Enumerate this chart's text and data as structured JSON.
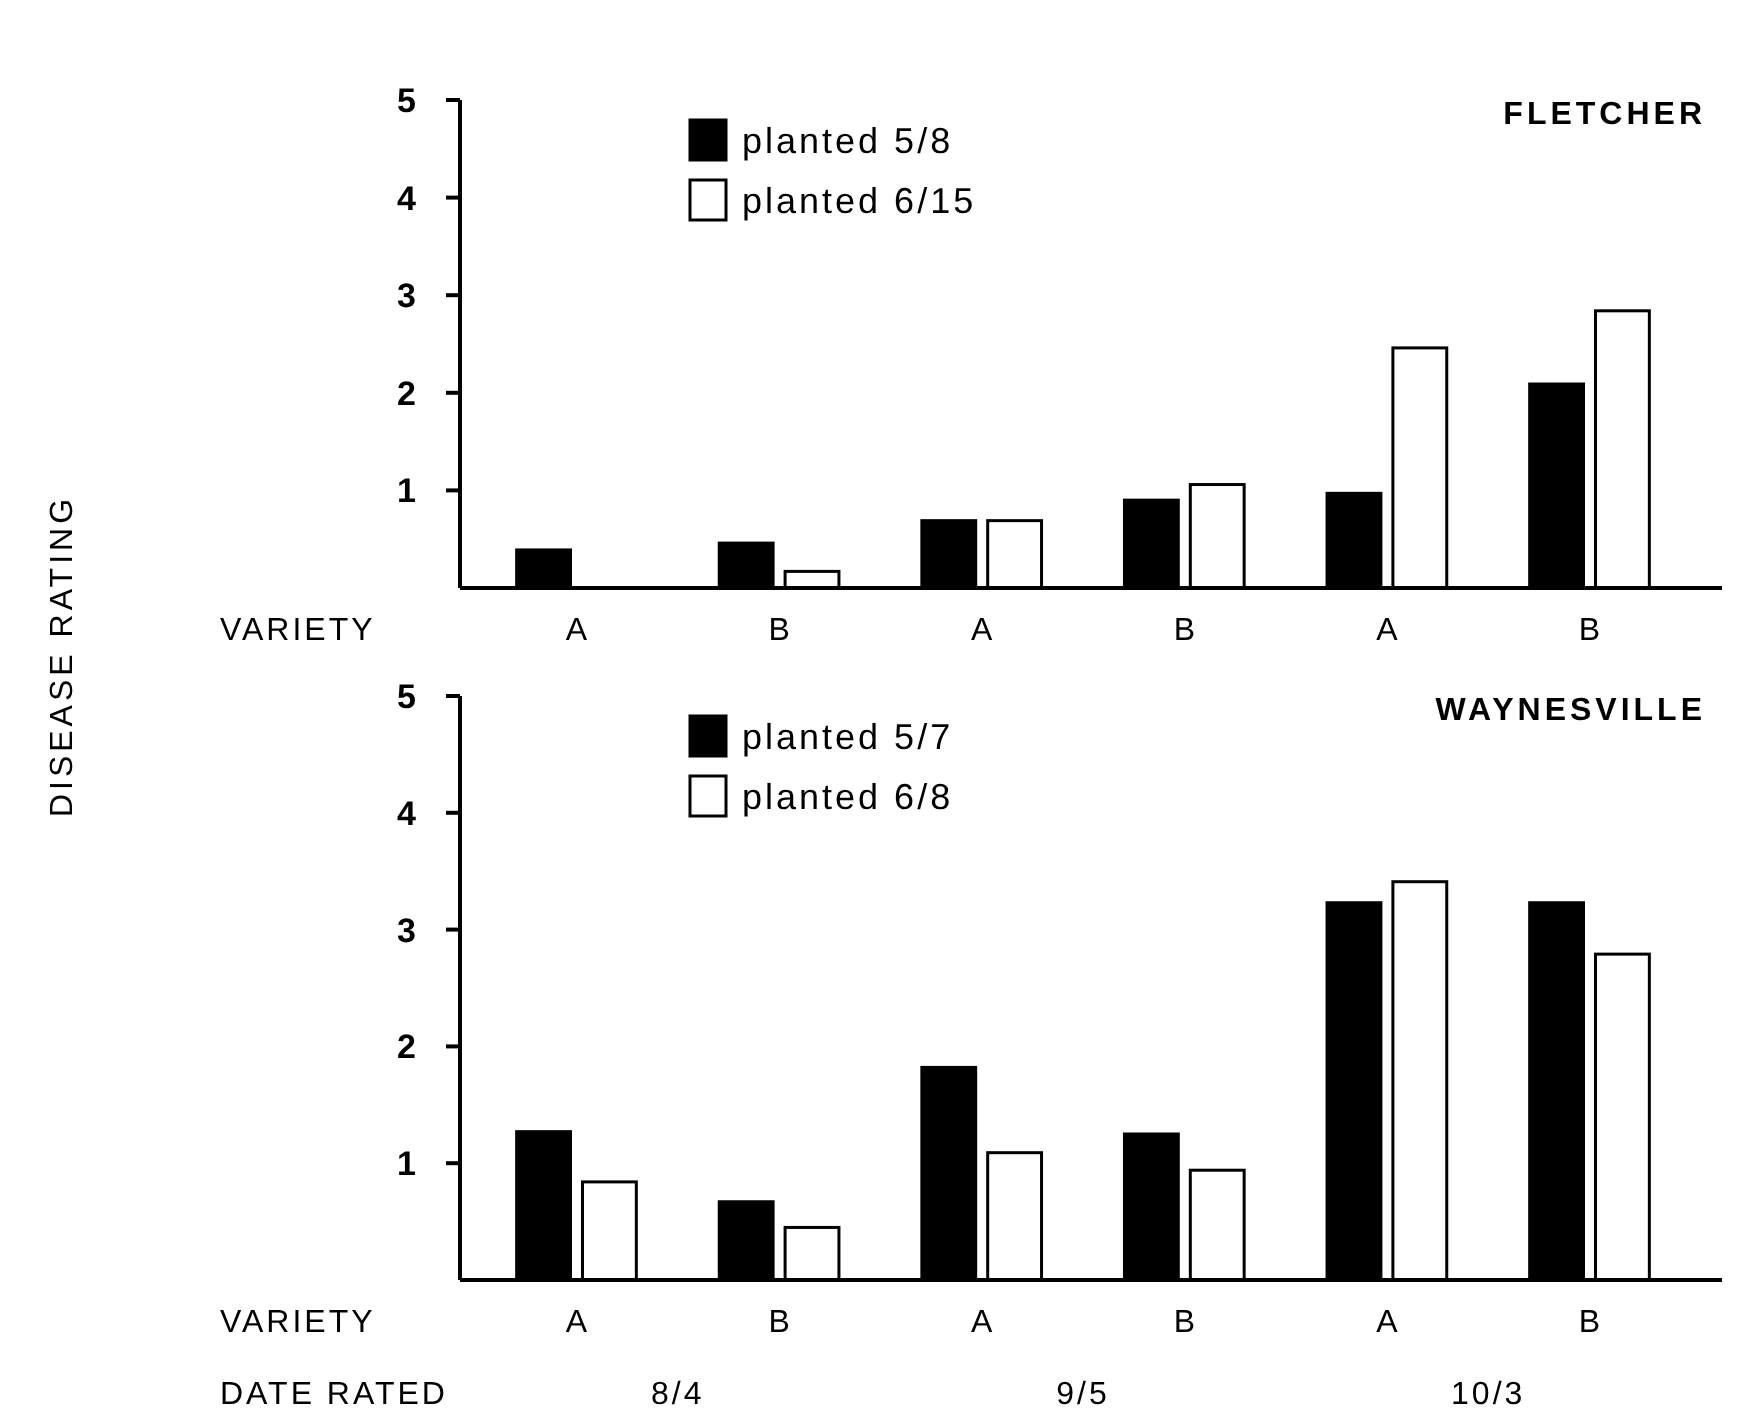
{
  "chart_data": [
    {
      "type": "bar",
      "title": "FLETCHER",
      "ylabel": "DISEASE RATING",
      "xlabel": "VARIETY",
      "categories": [
        "A",
        "B",
        "A",
        "B",
        "A",
        "B"
      ],
      "series": [
        {
          "name": "planted 5/8",
          "color": "#000000",
          "values": [
            0.39,
            0.46,
            0.69,
            0.9,
            0.97,
            2.09
          ]
        },
        {
          "name": "planted 6/15",
          "color": "#ffffff",
          "values": [
            0,
            0.17,
            0.69,
            1.06,
            2.46,
            2.84
          ]
        }
      ],
      "ylim": [
        0,
        5
      ],
      "yticks": [
        1,
        2,
        3,
        4,
        5
      ],
      "legend": "top left",
      "grid": false
    },
    {
      "type": "bar",
      "title": "WAYNESVILLE",
      "xlabel": "VARIETY",
      "categories": [
        "A",
        "B",
        "A",
        "B",
        "A",
        "B"
      ],
      "series": [
        {
          "name": "planted 5/7",
          "color": "#000000",
          "values": [
            1.27,
            0.67,
            1.82,
            1.25,
            3.23,
            3.23
          ]
        },
        {
          "name": "planted 6/8",
          "color": "#ffffff",
          "values": [
            0.84,
            0.45,
            1.09,
            0.94,
            3.41,
            2.79
          ]
        }
      ],
      "ylim": [
        0,
        5
      ],
      "yticks": [
        1,
        2,
        3,
        4,
        5
      ],
      "legend": "top left",
      "grid": false,
      "annotations": [
        "DATE RATED",
        "8/4",
        "9/5",
        "10/3"
      ]
    }
  ]
}
